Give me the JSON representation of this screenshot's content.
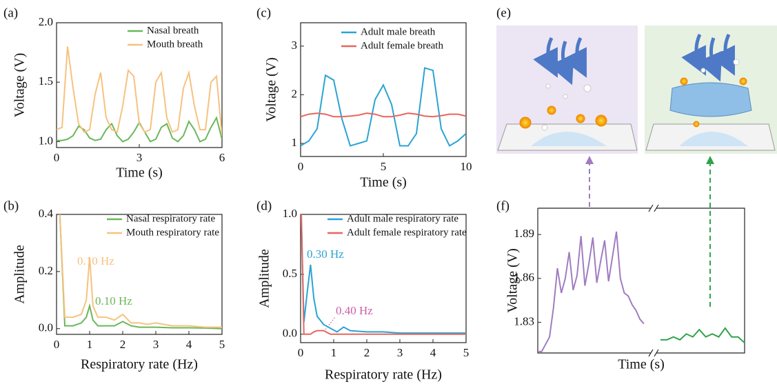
{
  "chart_data": [
    {
      "type": "line",
      "panel_label": "(a)",
      "xlabel": "Time (s)",
      "ylabel": "Voltage (V)",
      "x": [
        0,
        0.2,
        0.4,
        0.6,
        0.8,
        1.0,
        1.2,
        1.4,
        1.6,
        1.8,
        2.0,
        2.2,
        2.4,
        2.6,
        2.8,
        3.0,
        3.2,
        3.4,
        3.6,
        3.8,
        4.0,
        4.2,
        4.4,
        4.6,
        4.8,
        5.0,
        5.2,
        5.4,
        5.6,
        5.8,
        6.0
      ],
      "series": [
        {
          "name": "Nasal breath",
          "color": "#6ab75a",
          "values": [
            1.01,
            1.01,
            1.02,
            1.05,
            1.13,
            1.1,
            1.03,
            1.01,
            1.02,
            1.1,
            1.15,
            1.05,
            1.0,
            1.02,
            1.08,
            1.16,
            1.08,
            1.0,
            1.02,
            1.12,
            1.15,
            1.03,
            1.0,
            1.05,
            1.17,
            1.1,
            1.0,
            1.02,
            1.12,
            1.2,
            1.02
          ]
        },
        {
          "name": "Mouth breath",
          "color": "#f6c27f",
          "values": [
            1.1,
            1.12,
            1.8,
            1.45,
            1.15,
            1.08,
            1.1,
            1.4,
            1.58,
            1.2,
            1.1,
            1.08,
            1.3,
            1.6,
            1.55,
            1.15,
            1.08,
            1.1,
            1.5,
            1.58,
            1.2,
            1.08,
            1.1,
            1.45,
            1.58,
            1.3,
            1.1,
            1.1,
            1.5,
            1.55,
            1.05
          ]
        }
      ],
      "xlim": [
        0,
        6
      ],
      "xticks": [
        0,
        3,
        6
      ],
      "ylim": [
        0.95,
        2.0
      ],
      "yticks": [
        {
          "value": 1.0,
          "label": "1.0"
        },
        {
          "value": 1.5,
          "label": "1.5"
        },
        {
          "value": 2.0,
          "label": "2.0"
        }
      ]
    },
    {
      "type": "line",
      "panel_label": "(b)",
      "xlabel": "Respiratory rate (Hz)",
      "ylabel": "Amplitude",
      "x": [
        0.1,
        0.25,
        0.5,
        0.75,
        0.9,
        1.0,
        1.1,
        1.25,
        1.5,
        1.75,
        2.0,
        2.25,
        2.5,
        2.75,
        3,
        3.5,
        4,
        4.5,
        5
      ],
      "series": [
        {
          "name": "Nasal respiratory rate",
          "color": "#6ab75a",
          "values": [
            0.4,
            0.01,
            0.01,
            0.02,
            0.04,
            0.08,
            0.03,
            0.01,
            0.01,
            0.01,
            0.025,
            0.01,
            0.005,
            0.005,
            0.005,
            0.003,
            0.003,
            0.002,
            0.0
          ]
        },
        {
          "name": "Mouth respiratory rate",
          "color": "#f6c27f",
          "values": [
            0.4,
            0.04,
            0.04,
            0.05,
            0.1,
            0.25,
            0.08,
            0.04,
            0.04,
            0.03,
            0.05,
            0.02,
            0.02,
            0.015,
            0.02,
            0.01,
            0.01,
            0.005,
            0.005
          ]
        }
      ],
      "annotations": [
        {
          "text": "0.10 Hz",
          "color": "#f6c27f"
        },
        {
          "text": "0.10 Hz",
          "color": "#6ab75a"
        }
      ],
      "xlim": [
        0,
        5
      ],
      "xticks": [
        0,
        1,
        2,
        3,
        4,
        5
      ],
      "ylim": [
        -0.02,
        0.4
      ],
      "yticks": [
        {
          "value": 0.0,
          "label": "0.0"
        },
        {
          "value": 0.2,
          "label": "0.2"
        },
        {
          "value": 0.4,
          "label": "0.4"
        }
      ]
    },
    {
      "type": "line",
      "panel_label": "(c)",
      "xlabel": "Time (s)",
      "ylabel": "Voltage (V)",
      "x": [
        0,
        0.5,
        1,
        1.5,
        2,
        2.5,
        3,
        3.5,
        4,
        4.5,
        5,
        5.5,
        6,
        6.5,
        7,
        7.5,
        8,
        8.5,
        9,
        9.5,
        10
      ],
      "series": [
        {
          "name": "Adult male breath",
          "color": "#2aa3d3",
          "values": [
            0.95,
            1.05,
            1.3,
            2.4,
            2.3,
            1.5,
            0.95,
            1.0,
            1.05,
            1.9,
            2.2,
            1.8,
            0.95,
            0.95,
            1.2,
            2.55,
            2.5,
            1.3,
            0.95,
            1.05,
            1.2
          ]
        },
        {
          "name": "Adult female breath",
          "color": "#e8655f",
          "values": [
            1.55,
            1.6,
            1.62,
            1.6,
            1.55,
            1.55,
            1.56,
            1.58,
            1.62,
            1.6,
            1.55,
            1.55,
            1.58,
            1.62,
            1.6,
            1.56,
            1.55,
            1.57,
            1.6,
            1.6,
            1.56
          ]
        }
      ],
      "xlim": [
        0,
        10
      ],
      "xticks": [
        0,
        5,
        10
      ],
      "ylim": [
        0.73,
        3.48
      ],
      "yticks": [
        1,
        2,
        3
      ]
    },
    {
      "type": "line",
      "panel_label": "(d)",
      "xlabel": "Respiratory rate (Hz)",
      "ylabel": "Amplitude",
      "x": [
        0.02,
        0.1,
        0.2,
        0.3,
        0.4,
        0.5,
        0.7,
        0.9,
        1.1,
        1.3,
        1.5,
        2,
        2.5,
        3,
        3.5,
        4,
        4.5,
        5
      ],
      "series": [
        {
          "name": "Adult male respiratory rate",
          "color": "#2aa3d3",
          "values": [
            1.0,
            0.1,
            0.35,
            0.58,
            0.3,
            0.15,
            0.08,
            0.05,
            0.02,
            0.06,
            0.03,
            0.02,
            0.02,
            0.01,
            0.01,
            0.01,
            0.01,
            0.01
          ]
        },
        {
          "name": "Adult female respiratory rate",
          "color": "#e8655f",
          "values": [
            1.0,
            0.0,
            0.0,
            0.0,
            0.02,
            0.03,
            0.03,
            0.0,
            0.0,
            0.0,
            0.0,
            0.0,
            0.0,
            0.0,
            0.0,
            0.0,
            0.0,
            0.0
          ]
        }
      ],
      "annotations": [
        {
          "text": "0.30 Hz",
          "color": "#2aa3d3"
        },
        {
          "text": "0.40 Hz",
          "color": "#c95fa8"
        }
      ],
      "xlim": [
        0,
        5
      ],
      "xticks": [
        0,
        1,
        2,
        3,
        4,
        5
      ],
      "ylim": [
        -0.07,
        1.0
      ],
      "yticks": [
        {
          "value": 0.0,
          "label": "0.0"
        },
        {
          "value": 0.5,
          "label": "0.5"
        },
        {
          "value": 1.0,
          "label": "1.0"
        }
      ]
    },
    {
      "type": "broken_line",
      "panel_label": "(f)",
      "xlabel": "Time (s)",
      "ylabel": "Voltage (V)",
      "series": [
        {
          "color": "#a07cc0",
          "values": [
            1.81,
            1.81,
            1.815,
            1.82,
            1.84,
            1.867,
            1.85,
            1.86,
            1.878,
            1.852,
            1.862,
            1.889,
            1.855,
            1.87,
            1.888,
            1.857,
            1.872,
            1.886,
            1.858,
            1.875,
            1.892,
            1.86,
            1.85,
            1.848,
            1.842,
            1.838,
            1.832,
            1.829
          ]
        },
        {
          "color": "#2fa34a",
          "values": [
            1.818,
            1.818,
            1.82,
            1.818,
            1.822,
            1.82,
            1.825,
            1.82,
            1.822,
            1.82,
            1.826,
            1.82,
            1.82,
            1.816
          ]
        }
      ],
      "ylim": [
        1.809,
        1.908
      ],
      "yticks": [
        1.83,
        1.86,
        1.89
      ]
    }
  ],
  "illustration": {
    "label": "(e)"
  }
}
